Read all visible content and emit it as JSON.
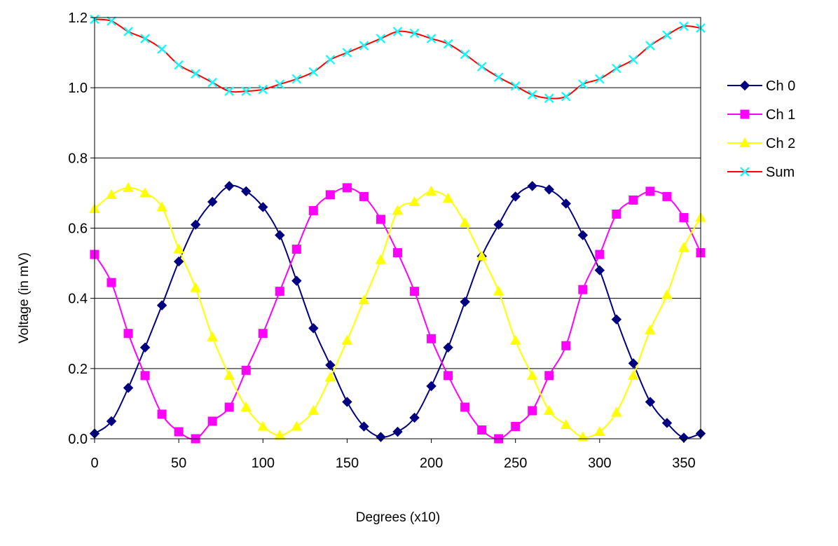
{
  "chart_data": {
    "type": "line",
    "title": "",
    "xlabel": "Degrees (x10)",
    "ylabel": "Voltage (in mV)",
    "xlim": [
      0,
      360
    ],
    "ylim": [
      0,
      1.2
    ],
    "x_ticks": [
      0,
      50,
      100,
      150,
      200,
      250,
      300,
      350
    ],
    "y_ticks": [
      0.0,
      0.2,
      0.4,
      0.6,
      0.8,
      1.0,
      1.2
    ],
    "x_tick_labels": [
      "0",
      "50",
      "100",
      "150",
      "200",
      "250",
      "300",
      "350"
    ],
    "y_tick_labels": [
      "0.0",
      "0.2",
      "0.4",
      "0.6",
      "0.8",
      "1.0",
      "1.2"
    ],
    "grid": "horizontal",
    "legend_position": "right",
    "x": [
      0,
      10,
      20,
      30,
      40,
      50,
      60,
      70,
      80,
      90,
      100,
      110,
      120,
      130,
      140,
      150,
      160,
      170,
      180,
      190,
      200,
      210,
      220,
      230,
      240,
      250,
      260,
      270,
      280,
      290,
      300,
      310,
      320,
      330,
      340,
      350,
      360
    ],
    "series": [
      {
        "name": "Ch 0",
        "color": "#000080",
        "marker": "diamond",
        "values": [
          0.015,
          0.05,
          0.145,
          0.26,
          0.38,
          0.505,
          0.61,
          0.675,
          0.72,
          0.705,
          0.66,
          0.58,
          0.45,
          0.315,
          0.21,
          0.105,
          0.035,
          0.005,
          0.02,
          0.06,
          0.15,
          0.26,
          0.39,
          0.52,
          0.61,
          0.69,
          0.72,
          0.71,
          0.67,
          0.58,
          0.48,
          0.34,
          0.215,
          0.105,
          0.045,
          0.003,
          0.015
        ]
      },
      {
        "name": "Ch 1",
        "color": "#ff00ff",
        "marker": "square",
        "values": [
          0.525,
          0.445,
          0.3,
          0.18,
          0.07,
          0.02,
          0.0,
          0.05,
          0.09,
          0.195,
          0.3,
          0.42,
          0.54,
          0.65,
          0.695,
          0.715,
          0.69,
          0.625,
          0.53,
          0.42,
          0.285,
          0.18,
          0.09,
          0.025,
          0.0,
          0.035,
          0.08,
          0.18,
          0.265,
          0.425,
          0.525,
          0.64,
          0.68,
          0.705,
          0.69,
          0.63,
          0.53
        ]
      },
      {
        "name": "Ch 2",
        "color": "#ffff00",
        "marker": "triangle",
        "values": [
          0.655,
          0.695,
          0.715,
          0.7,
          0.66,
          0.54,
          0.43,
          0.29,
          0.18,
          0.09,
          0.035,
          0.01,
          0.035,
          0.08,
          0.175,
          0.28,
          0.395,
          0.51,
          0.65,
          0.675,
          0.705,
          0.685,
          0.615,
          0.52,
          0.42,
          0.28,
          0.18,
          0.08,
          0.04,
          0.005,
          0.02,
          0.075,
          0.18,
          0.31,
          0.41,
          0.545,
          0.63
        ]
      },
      {
        "name": "Sum",
        "color": "#ff0000",
        "marker": "x",
        "marker_color": "#00ffff",
        "values": [
          1.195,
          1.19,
          1.16,
          1.14,
          1.11,
          1.065,
          1.04,
          1.015,
          0.99,
          0.99,
          0.995,
          1.01,
          1.025,
          1.045,
          1.08,
          1.1,
          1.12,
          1.14,
          1.16,
          1.155,
          1.14,
          1.125,
          1.095,
          1.06,
          1.03,
          1.005,
          0.98,
          0.97,
          0.975,
          1.01,
          1.025,
          1.055,
          1.08,
          1.12,
          1.15,
          1.175,
          1.17
        ]
      }
    ]
  }
}
